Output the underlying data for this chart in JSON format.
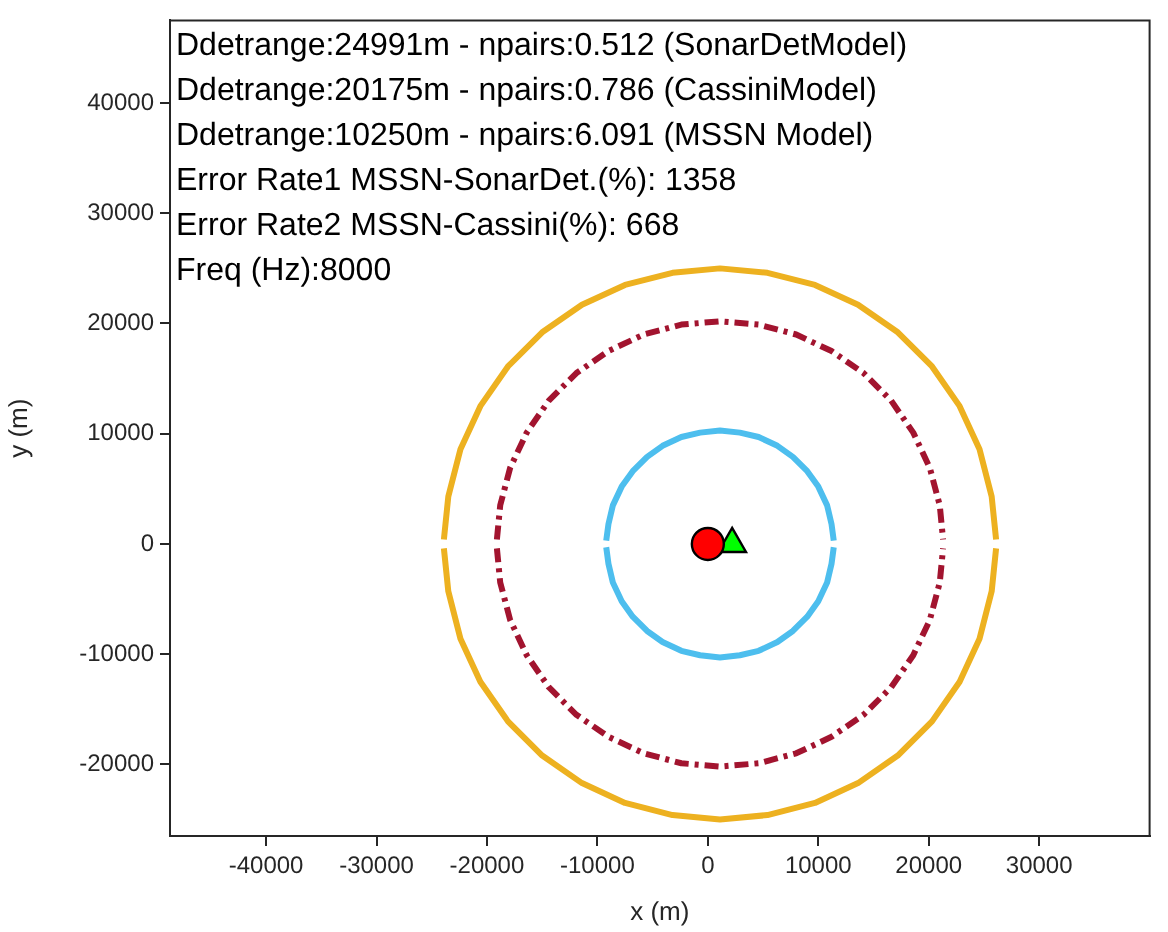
{
  "chart_data": {
    "type": "line",
    "xlabel": "x (m)",
    "ylabel": "y (m)",
    "annotations": [
      "Ddetrange:24991m - npairs:0.512 (SonarDetModel)",
      "Ddetrange:20175m - npairs:0.786 (CassiniModel)",
      "Ddetrange:10250m - npairs:6.091 (MSSN Model)",
      "Error Rate1 MSSN-SonarDet.(%): 1358",
      "Error Rate2 MSSN-Cassini(%): 668",
      "Freq (Hz):8000"
    ],
    "xlim": [
      -48700,
      40000
    ],
    "ylim": [
      -26500,
      47500
    ],
    "xticks": [
      -40000,
      -30000,
      -20000,
      -10000,
      0,
      10000,
      20000,
      30000
    ],
    "yticks": [
      -20000,
      -10000,
      0,
      10000,
      20000,
      30000,
      40000
    ],
    "grid": false,
    "legend": false,
    "series": [
      {
        "color": "#edb120",
        "line_style": "solid",
        "marker": "none",
        "x": [
          -23900,
          -23500,
          -22400,
          -20600,
          -18100,
          -15000,
          -11400,
          -7500,
          -3200,
          1100,
          5400,
          9700,
          13600,
          17200,
          20300,
          22800,
          24600,
          25700,
          26100
        ],
        "values": [
          400,
          4300,
          8600,
          12500,
          16100,
          19200,
          21700,
          23500,
          24600,
          25000,
          24600,
          23500,
          21700,
          19200,
          16100,
          12500,
          8600,
          4300,
          400
        ]
      },
      {
        "color": "#edb120",
        "line_style": "solid",
        "marker": "none",
        "x": [
          -23900,
          -23500,
          -22400,
          -20600,
          -18100,
          -15000,
          -11400,
          -7500,
          -3200,
          1100,
          5400,
          9700,
          13600,
          17200,
          20300,
          22800,
          24600,
          25700,
          26100
        ],
        "values": [
          -400,
          -4300,
          -8600,
          -12500,
          -16100,
          -19200,
          -21700,
          -23500,
          -24600,
          -25000,
          -24600,
          -23500,
          -21700,
          -19200,
          -16100,
          -12500,
          -8600,
          -4300,
          -400
        ]
      },
      {
        "color": "#a2142f",
        "line_style": "dashed",
        "marker": "none",
        "x": [
          -19100,
          -18800,
          -17900,
          -16400,
          -14400,
          -11900,
          -9000,
          -5800,
          -2400,
          1100,
          4600,
          8000,
          11200,
          14100,
          16600,
          18600,
          20100,
          21000,
          21300
        ],
        "values": [
          400,
          3500,
          6900,
          10100,
          13000,
          15500,
          17500,
          19000,
          19900,
          20200,
          19900,
          19000,
          17500,
          15500,
          13000,
          10100,
          6900,
          3500,
          400
        ]
      },
      {
        "color": "#a2142f",
        "line_style": "dashed",
        "marker": "none",
        "x": [
          -19100,
          -18800,
          -17900,
          -16400,
          -14400,
          -11900,
          -9000,
          -5800,
          -2400,
          1100,
          4600,
          8000,
          11200,
          14100,
          16600,
          18600,
          20100,
          21000,
          21300
        ],
        "values": [
          -400,
          -3500,
          -6900,
          -10100,
          -13000,
          -15500,
          -17500,
          -19000,
          -19900,
          -20200,
          -19900,
          -19000,
          -17500,
          -15500,
          -13000,
          -10100,
          -6900,
          -3500,
          -400
        ]
      },
      {
        "color": "#4dbeee",
        "line_style": "solid",
        "marker": "none",
        "x": [
          -9200,
          -9000,
          -8600,
          -7800,
          -6800,
          -5500,
          -4100,
          -2400,
          -700,
          1100,
          2900,
          4600,
          6300,
          7700,
          9000,
          10000,
          10800,
          11200,
          11400
        ],
        "values": [
          300,
          1800,
          3500,
          5200,
          6600,
          7900,
          8900,
          9700,
          10100,
          10300,
          10100,
          9700,
          8900,
          7900,
          6600,
          5200,
          3500,
          1800,
          300
        ]
      },
      {
        "color": "#4dbeee",
        "line_style": "solid",
        "marker": "none",
        "x": [
          -9200,
          -9000,
          -8600,
          -7800,
          -6800,
          -5500,
          -4100,
          -2400,
          -700,
          1100,
          2900,
          4600,
          6300,
          7700,
          9000,
          10000,
          10800,
          11200,
          11400
        ],
        "values": [
          -300,
          -1800,
          -3500,
          -5200,
          -6600,
          -7900,
          -8900,
          -9700,
          -10100,
          -10300,
          -10100,
          -9700,
          -8900,
          -7900,
          -6600,
          -5200,
          -3500,
          -1800,
          -300
        ]
      },
      {
        "type": "scatter",
        "color": "#ff0000",
        "marker": "circle",
        "x": [
          0
        ],
        "values": [
          0
        ]
      },
      {
        "type": "scatter",
        "color": "#00ff00",
        "marker": "triangle",
        "x": [
          2200
        ],
        "values": [
          0
        ]
      }
    ]
  }
}
